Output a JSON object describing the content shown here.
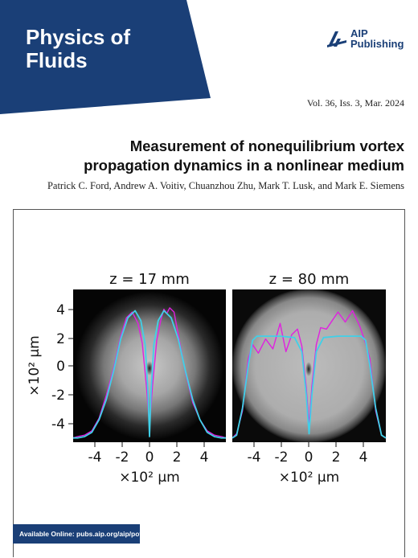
{
  "journal": {
    "name_line1": "Physics of",
    "name_line2": "Fluids"
  },
  "publisher": {
    "line1": "AIP",
    "line2": "Publishing"
  },
  "issue": "Vol. 36, Iss. 3, Mar. 2024",
  "title_line1": "Measurement of nonequilibrium vortex",
  "title_line2": "propagation dynamics in a nonlinear medium",
  "authors": "Patrick C. Ford, Andrew A. Voitiv, Chuanzhou Zhu, Mark T. Lusk, and Mark E. Siemens",
  "availability": "Available Online: pubs.aip.org/aip/pof",
  "colors": {
    "brand_blue": "#1a3f77",
    "measured": "#e020e0",
    "fit": "#40d0e8"
  },
  "figure": {
    "panels": [
      {
        "label": "z = 17 mm"
      },
      {
        "label": "z = 80 mm"
      }
    ],
    "y_label": "×10² µm",
    "y_ticks": [
      "4",
      "2",
      "0",
      "-2",
      "-4"
    ],
    "x_label_left": "×10² µm",
    "x_label_right": "×10² µm",
    "x_ticks": [
      "-4",
      "-2",
      "0",
      "2",
      "4"
    ]
  },
  "chart_data": [
    {
      "type": "line",
      "title": "z = 17 mm",
      "xlabel": "×10² µm",
      "ylabel": "×10² µm",
      "xlim": [
        -5.3,
        5.3
      ],
      "ylim": [
        -5.4,
        5.4
      ],
      "series": [
        {
          "x": [
            -5.3,
            -5.0,
            -4.5,
            -4.0,
            -3.5,
            -3.0,
            -2.5,
            -2.0,
            -1.5,
            -1.0,
            -0.6,
            -0.3,
            -0.1,
            0.0,
            0.1,
            0.3,
            0.6,
            1.0,
            1.5,
            2.0,
            2.5,
            3.0,
            3.5,
            4.0,
            4.5,
            5.0,
            5.3
          ],
          "y": [
            -5.1,
            -5.1,
            -5.0,
            -4.7,
            -3.8,
            -2.4,
            -0.4,
            1.9,
            3.4,
            3.9,
            3.2,
            1.5,
            -2.0,
            -5.0,
            -2.0,
            1.5,
            3.2,
            3.9,
            3.4,
            1.9,
            -0.4,
            -2.4,
            -3.8,
            -4.7,
            -5.0,
            -5.1,
            -5.1
          ]
        },
        {
          "x": [
            -5.3,
            -5.0,
            -4.5,
            -4.0,
            -3.5,
            -3.0,
            -2.5,
            -2.0,
            -1.6,
            -1.2,
            -0.8,
            -0.5,
            -0.2,
            0.0,
            0.2,
            0.5,
            0.8,
            1.0,
            1.2,
            1.4,
            1.7,
            2.0,
            2.5,
            3.0,
            3.5,
            4.0,
            4.5,
            5.0,
            5.3
          ],
          "y": [
            -5.1,
            -5.0,
            -4.9,
            -4.6,
            -3.7,
            -2.1,
            -0.2,
            2.1,
            3.4,
            3.8,
            3.0,
            1.6,
            -1.6,
            -4.2,
            -1.5,
            1.8,
            3.3,
            4.0,
            3.7,
            4.1,
            3.8,
            2.2,
            -0.5,
            -2.6,
            -3.8,
            -4.6,
            -4.9,
            -5.0,
            -5.1
          ]
        }
      ]
    },
    {
      "type": "line",
      "title": "z = 80 mm",
      "xlabel": "×10² µm",
      "ylabel": "",
      "xlim": [
        -5.3,
        5.3
      ],
      "ylim": [
        -5.4,
        5.4
      ],
      "series": [
        {
          "x": [
            -5.3,
            -5.0,
            -4.6,
            -4.2,
            -3.9,
            -3.6,
            -3.0,
            -2.0,
            -1.0,
            -0.5,
            -0.2,
            0.0,
            0.2,
            0.5,
            1.0,
            2.0,
            3.0,
            3.6,
            3.9,
            4.2,
            4.6,
            5.0,
            5.3
          ],
          "y": [
            -5.1,
            -4.9,
            -3.0,
            0.0,
            1.8,
            2.1,
            2.1,
            2.1,
            2.0,
            1.0,
            -2.0,
            -4.8,
            -2.0,
            1.0,
            2.0,
            2.1,
            2.1,
            2.1,
            1.8,
            0.0,
            -3.0,
            -4.9,
            -5.1
          ]
        },
        {
          "x": [
            -5.3,
            -5.0,
            -4.6,
            -4.2,
            -3.9,
            -3.5,
            -3.0,
            -2.5,
            -2.0,
            -1.6,
            -1.2,
            -0.8,
            -0.5,
            -0.2,
            0.0,
            0.2,
            0.5,
            0.8,
            1.2,
            1.6,
            2.0,
            2.5,
            3.0,
            3.5,
            3.9,
            4.2,
            4.6,
            5.0,
            5.3
          ],
          "y": [
            -5.1,
            -4.8,
            -3.2,
            0.5,
            1.5,
            0.9,
            1.9,
            1.2,
            3.0,
            1.0,
            2.2,
            2.6,
            1.4,
            -1.5,
            -4.2,
            -1.4,
            1.5,
            2.7,
            2.6,
            3.2,
            3.8,
            3.1,
            3.9,
            2.8,
            1.6,
            0.5,
            -3.2,
            -4.9,
            -5.1
          ]
        }
      ]
    }
  ]
}
